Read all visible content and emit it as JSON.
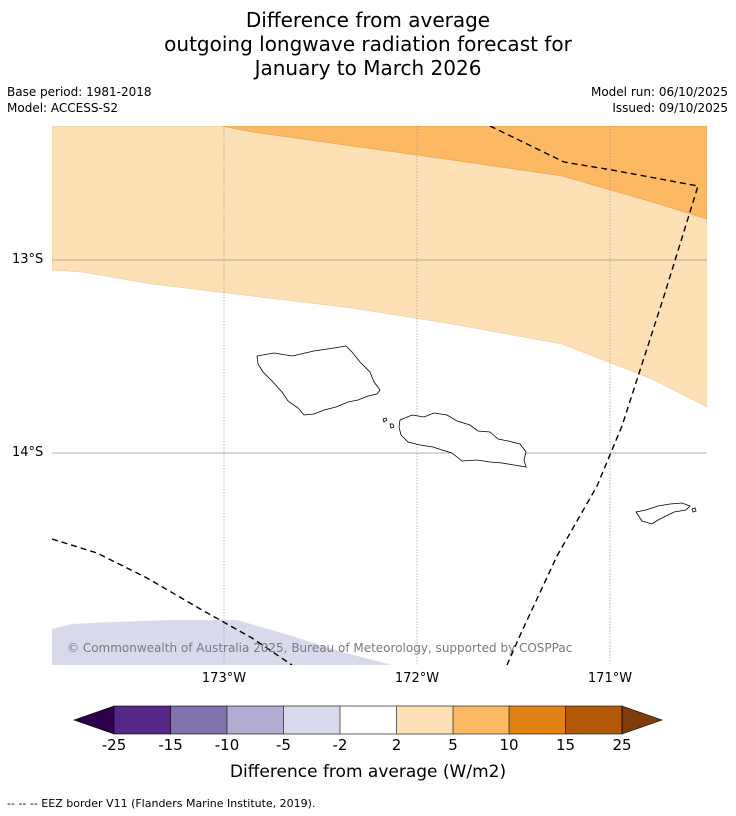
{
  "title": {
    "line1": "Difference from average",
    "line2": "outgoing longwave radiation forecast for",
    "line3": "January to March 2026"
  },
  "meta": {
    "base_period": "Base period: 1981-2018",
    "model": "Model: ACCESS-S2",
    "model_run": "Model run: 06/10/2025",
    "issued": "Issued: 09/10/2025"
  },
  "map": {
    "lat_labels": [
      "13°S",
      "14°S"
    ],
    "lon_labels": [
      "173°W",
      "172°W",
      "171°W"
    ],
    "copyright": "© Commonwealth of Australia 2025, Bureau of Meteorology, supported by COSPPac",
    "colors": {
      "anomaly_2_to_5": "#fde0b6",
      "anomaly_5_to_10": "#fdb863",
      "anomaly_minus5_to_minus2": "#d8daeb",
      "coast": "#000000"
    }
  },
  "colorbar": {
    "ticks": [
      "-25",
      "-15",
      "-10",
      "-5",
      "-2",
      "2",
      "5",
      "10",
      "15",
      "25"
    ],
    "colors": [
      "#2d004b",
      "#542788",
      "#8073ac",
      "#b2abd2",
      "#d8daeb",
      "#ffffff",
      "#fee0b6",
      "#fdb863",
      "#e08214",
      "#b35806",
      "#7f3b08"
    ],
    "label": "Difference from average (W/m2)"
  },
  "footnote": "--  --  -- EEZ border V11 (Flanders Marine Institute, 2019)."
}
